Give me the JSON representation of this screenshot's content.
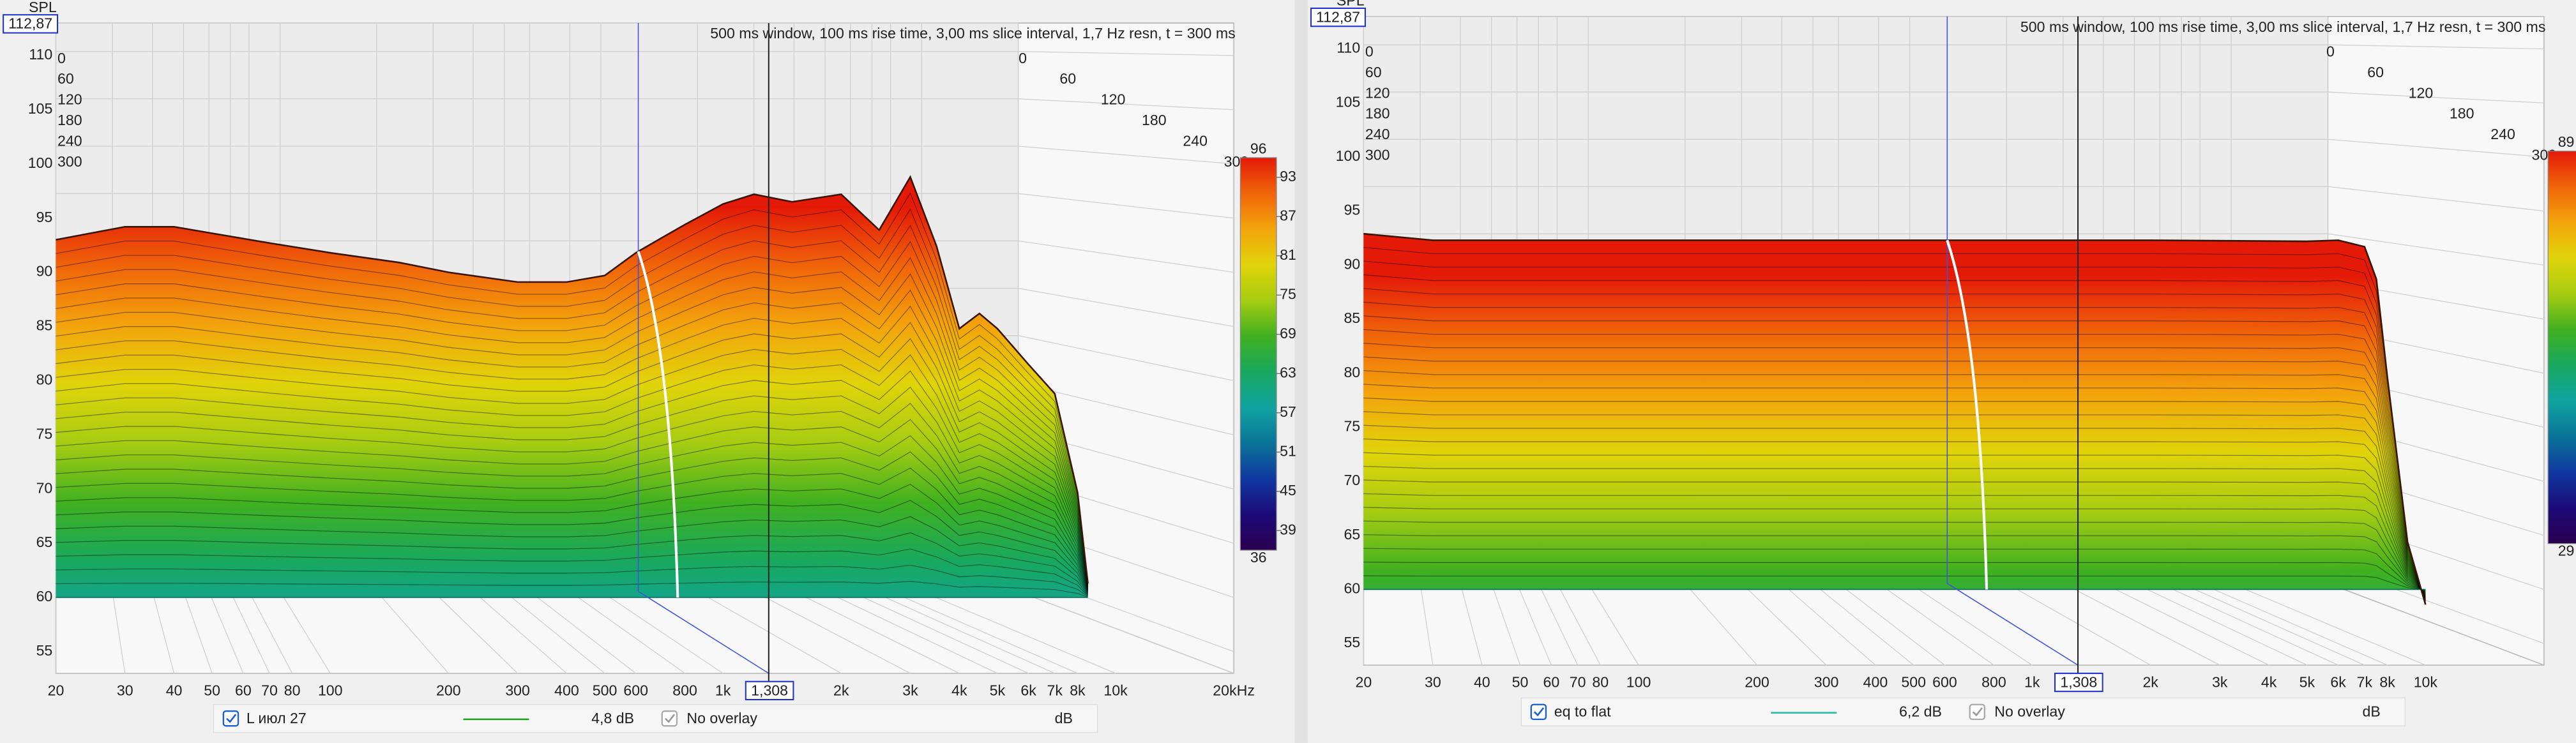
{
  "chart_data": [
    {
      "type": "waterfall",
      "y_label": "SPL",
      "info": "500 ms window, 100 ms rise time, 3,00 ms slice interval, 1,7 Hz resn, t = 300 ms",
      "x_log": true,
      "xlim": [
        20,
        20000
      ],
      "ylim": [
        53,
        113
      ],
      "floor": 60,
      "xticks": [
        20,
        30,
        40,
        50,
        60,
        70,
        80,
        100,
        200,
        300,
        400,
        500,
        600,
        800,
        {
          "value": 1000,
          "label": "1k"
        },
        {
          "value": 2000,
          "label": "2k"
        },
        {
          "value": 3000,
          "label": "3k"
        },
        {
          "value": 4000,
          "label": "4k"
        },
        {
          "value": 5000,
          "label": "5k"
        },
        {
          "value": 6000,
          "label": "6k"
        },
        {
          "value": 7000,
          "label": "7k"
        },
        {
          "value": 8000,
          "label": "8k"
        },
        {
          "value": 10000,
          "label": "10k"
        },
        {
          "value": 20000,
          "label": "20kHz"
        }
      ],
      "yticks": [
        55,
        60,
        65,
        70,
        75,
        80,
        85,
        90,
        95,
        100,
        105,
        110
      ],
      "depth_ticks": [
        0,
        60,
        120,
        180,
        240,
        300
      ],
      "cursor": {
        "x": {
          "value": 1308,
          "label": "1,308"
        },
        "y": {
          "value": 112.87,
          "label": "112,87"
        }
      },
      "colorbar": {
        "range": [
          36,
          96
        ],
        "ticks": [
          93,
          87,
          81,
          75,
          69,
          63,
          57,
          51,
          45,
          39
        ],
        "colors": [
          "#e41a08",
          "#f0650a",
          "#f3a40c",
          "#e0d40a",
          "#a6cc12",
          "#40b020",
          "#18a860",
          "#10a4a0",
          "#0a7498",
          "#1038a0",
          "#1c0a78",
          "#2a0050"
        ]
      },
      "series": [
        {
          "name": "L июл 27",
          "color": "#22a022",
          "x": [
            20,
            30,
            40,
            50,
            70,
            100,
            150,
            200,
            300,
            400,
            500,
            600,
            700,
            800,
            1000,
            1200,
            1500,
            2000,
            2500,
            3000,
            3500,
            4000,
            4500,
            5000,
            6000,
            7000,
            8000,
            8500
          ],
          "values": [
            93.0,
            94.2,
            94.2,
            93.6,
            92.7,
            91.8,
            90.9,
            90.0,
            89.1,
            89.1,
            89.7,
            91.8,
            93.2,
            94.4,
            96.3,
            97.2,
            96.5,
            97.2,
            93.9,
            98.8,
            92.4,
            84.8,
            86.2,
            84.8,
            81.5,
            78.8,
            69.7,
            61.3
          ]
        }
      ],
      "legend": {
        "offset": {
          "value": 4.8,
          "label": "4,8 dB"
        },
        "overlay": "No overlay",
        "unit": "dB"
      }
    },
    {
      "type": "waterfall",
      "y_label": "SPL",
      "info": "500 ms window, 100 ms rise time, 3,00 ms slice interval, 1,7 Hz resn, t = 300 ms",
      "x_log": true,
      "xlim": [
        20,
        20000
      ],
      "ylim": [
        53,
        113
      ],
      "floor": 60,
      "xticks": [
        20,
        30,
        40,
        50,
        60,
        70,
        80,
        100,
        200,
        300,
        400,
        500,
        600,
        800,
        {
          "value": 1000,
          "label": "1k"
        },
        {
          "value": 2000,
          "label": "2k"
        },
        {
          "value": 3000,
          "label": "3k"
        },
        {
          "value": 4000,
          "label": "4k"
        },
        {
          "value": 5000,
          "label": "5k"
        },
        {
          "value": 6000,
          "label": "6k"
        },
        {
          "value": 7000,
          "label": "7k"
        },
        {
          "value": 8000,
          "label": "8k"
        },
        {
          "value": 10000,
          "label": "10k"
        }
      ],
      "yticks": [
        55,
        60,
        65,
        70,
        75,
        80,
        85,
        90,
        95,
        100,
        105,
        110
      ],
      "depth_ticks": [
        0,
        60,
        120,
        180,
        240,
        300
      ],
      "cursor": {
        "x": {
          "value": 1308,
          "label": "1,308"
        },
        "y": {
          "value": 112.87,
          "label": "112,87"
        }
      },
      "colorbar": {
        "range": [
          29,
          89
        ],
        "ticks": [],
        "colors": [
          "#e41a08",
          "#f0650a",
          "#f3a40c",
          "#e0d40a",
          "#a6cc12",
          "#40b020",
          "#18a860",
          "#10a4a0",
          "#0a7498",
          "#1038a0",
          "#1c0a78",
          "#2a0050"
        ]
      },
      "series": [
        {
          "name": "eq to flat",
          "color": "#20b8a8",
          "x": [
            20,
            30,
            50,
            100,
            200,
            500,
            1000,
            2000,
            5000,
            6000,
            7000,
            7500,
            8000,
            9000,
            10000
          ],
          "values": [
            92.9,
            92.3,
            92.3,
            92.3,
            92.3,
            92.3,
            92.3,
            92.3,
            92.2,
            92.3,
            91.7,
            88.7,
            79.6,
            64.4,
            58.6
          ]
        }
      ],
      "legend": {
        "offset": {
          "value": 6.2,
          "label": "6,2 dB"
        },
        "overlay": "No overlay",
        "unit": "dB"
      }
    }
  ]
}
